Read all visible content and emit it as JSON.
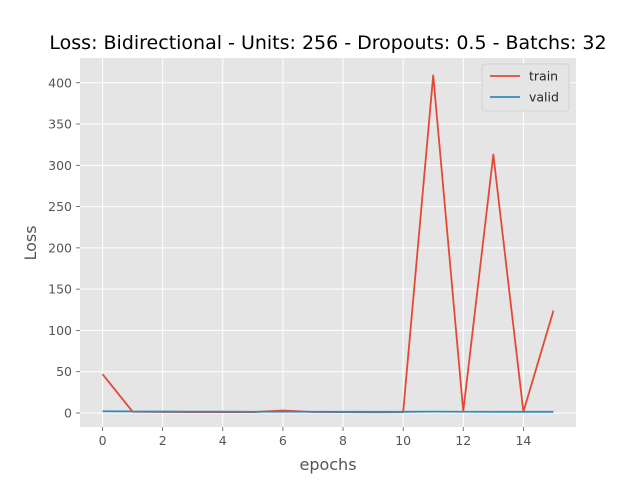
{
  "chart_data": {
    "type": "line",
    "title": "Loss: Bidirectional - Units: 256 - Dropouts: 0.5 - Batchs: 32",
    "xlabel": "epochs",
    "ylabel": "Loss",
    "x": [
      0,
      1,
      2,
      3,
      4,
      5,
      6,
      7,
      8,
      9,
      10,
      11,
      12,
      13,
      14,
      15
    ],
    "xlim": [
      -0.75,
      15.75
    ],
    "ylim": [
      -17,
      430
    ],
    "xticks": [
      0,
      2,
      4,
      6,
      8,
      10,
      12,
      14
    ],
    "yticks": [
      0,
      50,
      100,
      150,
      200,
      250,
      300,
      350,
      400
    ],
    "grid": true,
    "legend_position": "top-right",
    "series": [
      {
        "name": "train",
        "color": "#e24a33",
        "values": [
          47,
          1.5,
          1.2,
          1.0,
          1.1,
          1.0,
          3.0,
          1.2,
          1.1,
          0.9,
          1.0,
          409,
          2.0,
          313,
          1.5,
          124
        ]
      },
      {
        "name": "valid",
        "color": "#348abd",
        "values": [
          2.0,
          1.8,
          1.7,
          1.6,
          1.6,
          1.5,
          1.5,
          1.5,
          1.4,
          1.4,
          1.4,
          1.6,
          1.5,
          1.4,
          1.4,
          1.4
        ]
      }
    ]
  }
}
